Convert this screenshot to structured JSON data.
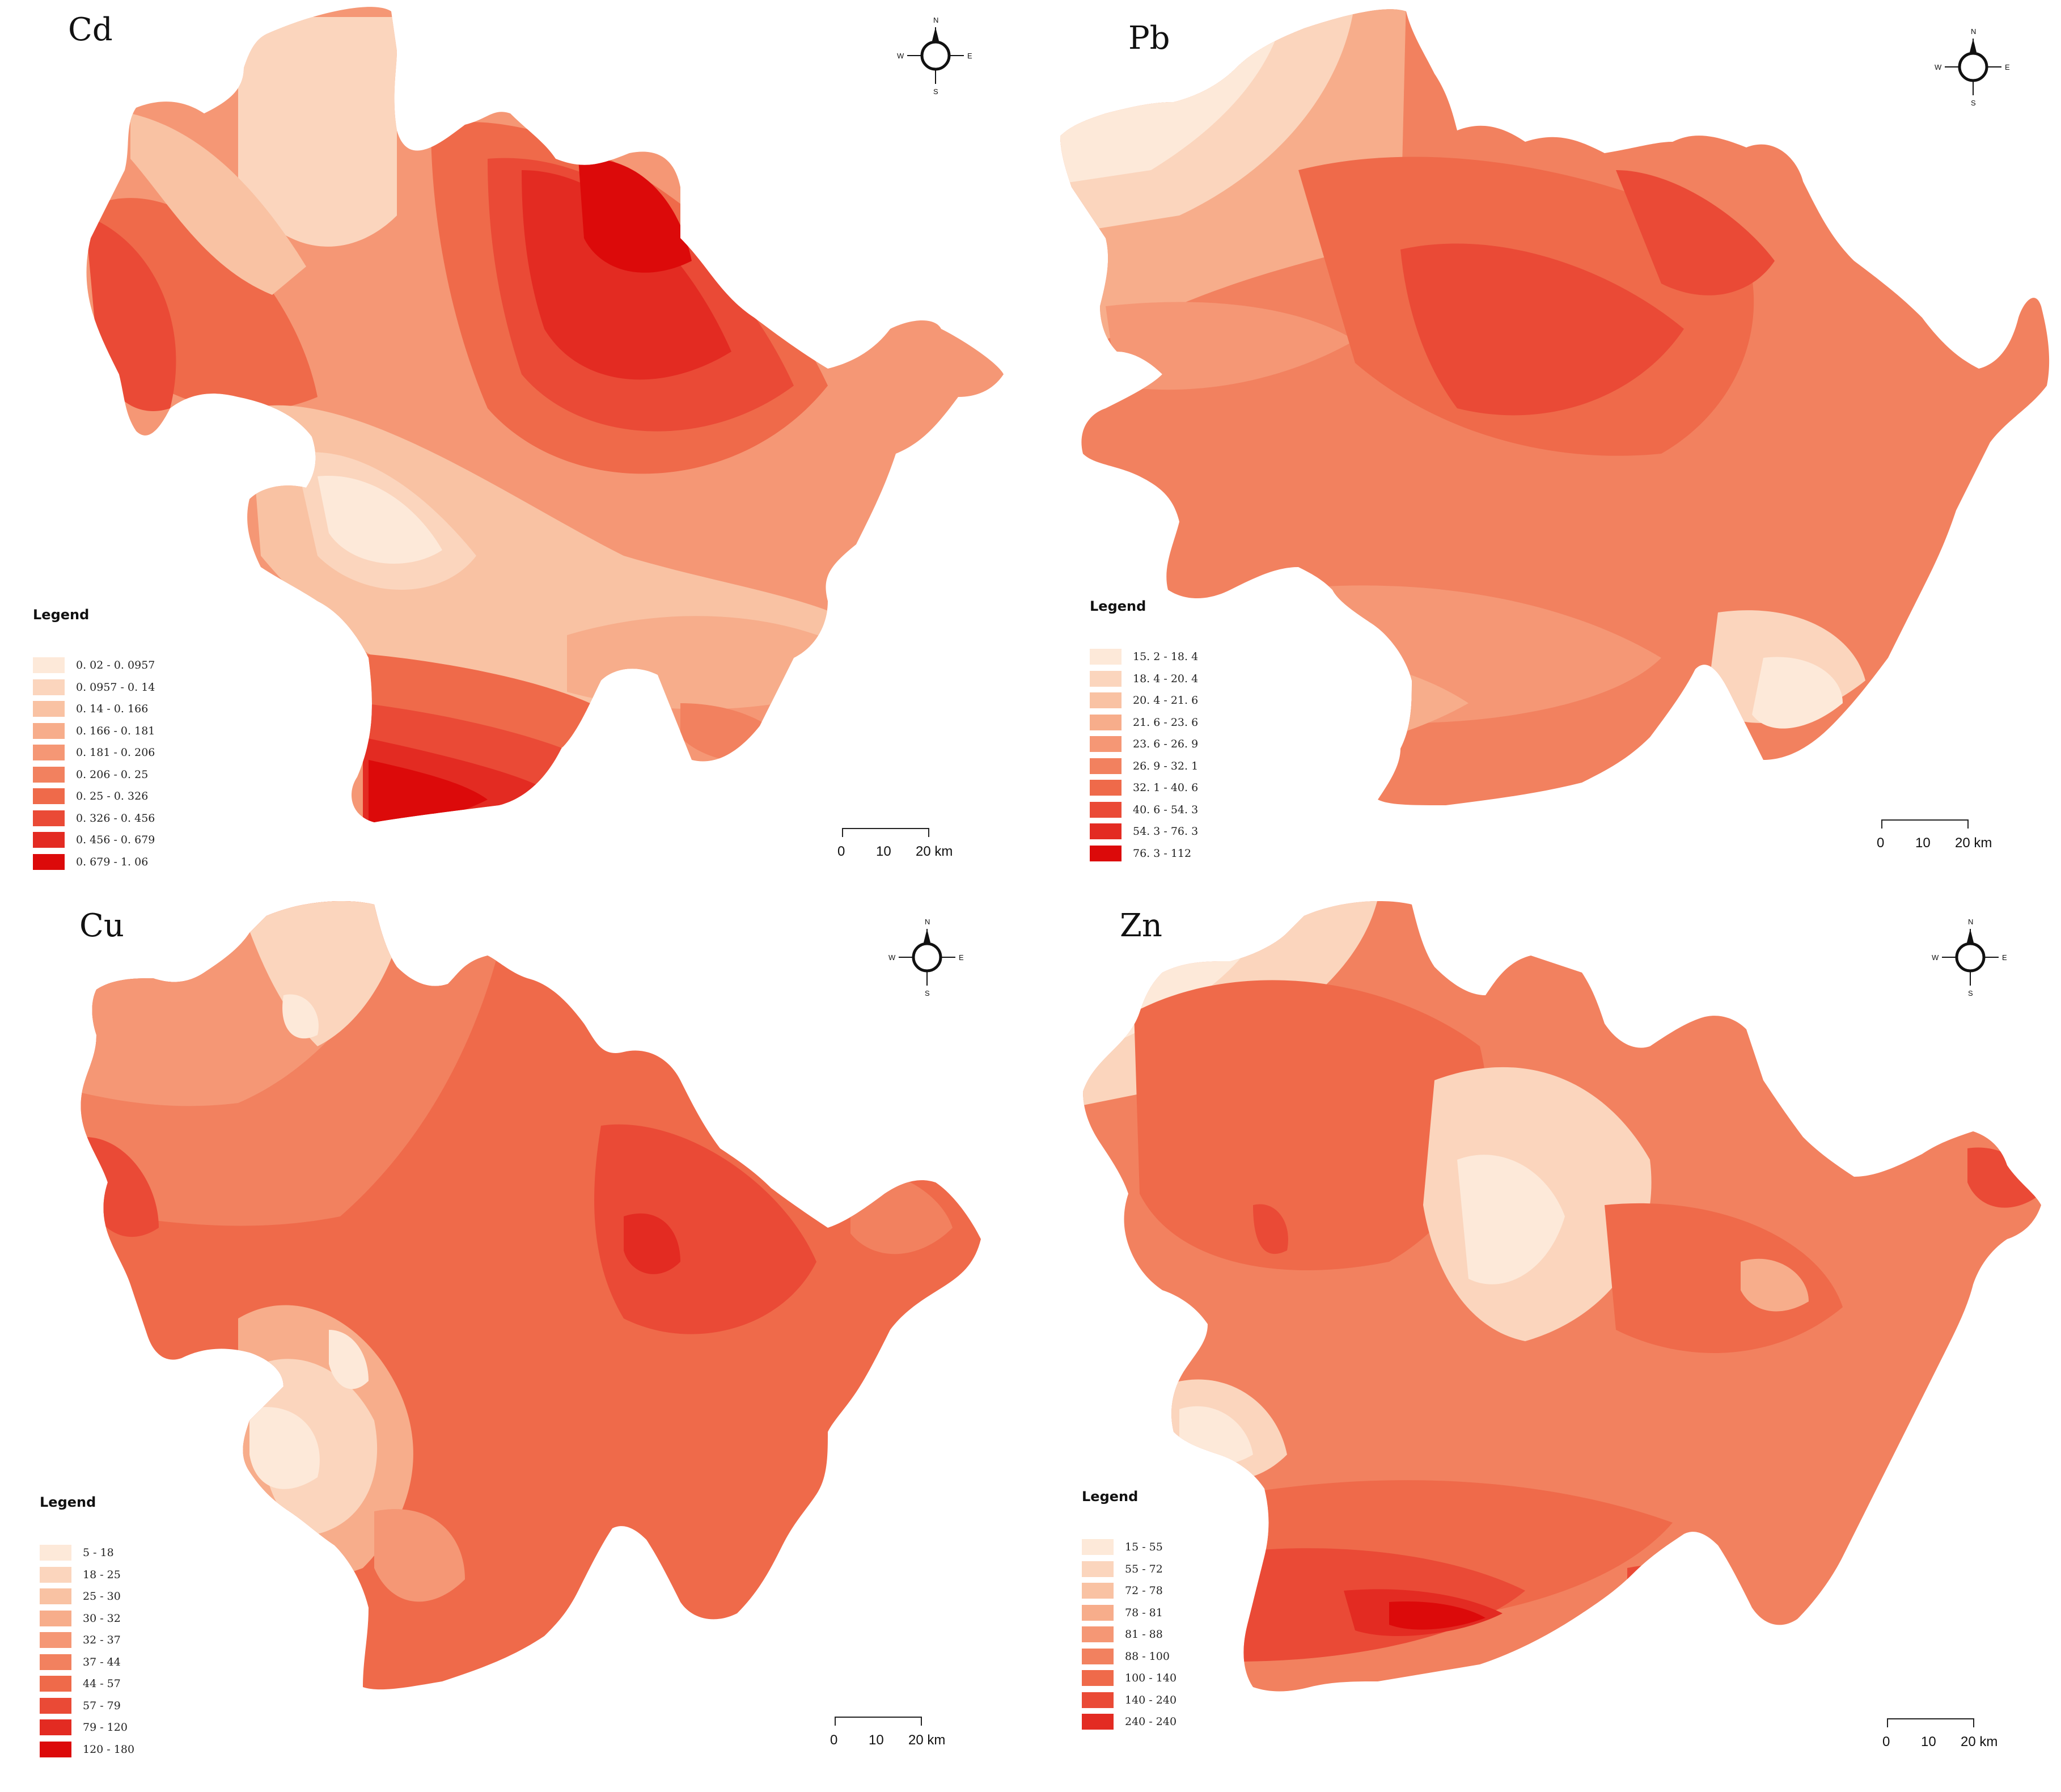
{
  "panels": [
    {
      "title": "Cd",
      "legend_title": "Legend",
      "legend": [
        {
          "label": "0. 02 - 0. 0957",
          "color": "#fde9d9"
        },
        {
          "label": "0. 0957 - 0. 14",
          "color": "#fbd5bd"
        },
        {
          "label": "0. 14 - 0. 166",
          "color": "#f9c2a3"
        },
        {
          "label": "0. 166 - 0. 181",
          "color": "#f7ad8b"
        },
        {
          "label": "0. 181 - 0. 206",
          "color": "#f59775"
        },
        {
          "label": "0. 206 - 0. 25",
          "color": "#f2815f"
        },
        {
          "label": "0. 25 - 0. 326",
          "color": "#ef6a4a"
        },
        {
          "label": "0. 326 - 0. 456",
          "color": "#ea4a36"
        },
        {
          "label": "0. 456 - 0. 679",
          "color": "#e32b22"
        },
        {
          "label": "0. 679 - 1. 06",
          "color": "#dc0a0a"
        }
      ],
      "scale": {
        "ticks": [
          "0",
          "10",
          "20 km"
        ]
      },
      "compass": {
        "n": "N",
        "s": "S",
        "e": "E",
        "w": "W"
      }
    },
    {
      "title": "Pb",
      "legend_title": "Legend",
      "legend": [
        {
          "label": "15. 2 - 18. 4",
          "color": "#fde9d9"
        },
        {
          "label": "18. 4 - 20. 4",
          "color": "#fbd5bd"
        },
        {
          "label": "20. 4 - 21. 6",
          "color": "#f9c2a3"
        },
        {
          "label": "21. 6 - 23. 6",
          "color": "#f7ad8b"
        },
        {
          "label": "23. 6 - 26. 9",
          "color": "#f59775"
        },
        {
          "label": "26. 9 - 32. 1",
          "color": "#f2815f"
        },
        {
          "label": "32. 1 - 40. 6",
          "color": "#ef6a4a"
        },
        {
          "label": "40. 6 - 54. 3",
          "color": "#ea4a36"
        },
        {
          "label": "54. 3 - 76. 3",
          "color": "#e32b22"
        },
        {
          "label": "76. 3 - 112",
          "color": "#dc0a0a"
        }
      ],
      "scale": {
        "ticks": [
          "0",
          "10",
          "20 km"
        ]
      },
      "compass": {
        "n": "N",
        "s": "S",
        "e": "E",
        "w": "W"
      }
    },
    {
      "title": "Cu",
      "legend_title": "Legend",
      "legend": [
        {
          "label": "5 - 18",
          "color": "#fde9d9"
        },
        {
          "label": "18 - 25",
          "color": "#fbd5bd"
        },
        {
          "label": "25 - 30",
          "color": "#f9c2a3"
        },
        {
          "label": "30 - 32",
          "color": "#f7ad8b"
        },
        {
          "label": "32 - 37",
          "color": "#f59775"
        },
        {
          "label": "37 - 44",
          "color": "#f2815f"
        },
        {
          "label": "44 - 57",
          "color": "#ef6a4a"
        },
        {
          "label": "57 - 79",
          "color": "#ea4a36"
        },
        {
          "label": "79 - 120",
          "color": "#e32b22"
        },
        {
          "label": "120 - 180",
          "color": "#dc0a0a"
        }
      ],
      "scale": {
        "ticks": [
          "0",
          "10",
          "20 km"
        ]
      },
      "compass": {
        "n": "N",
        "s": "S",
        "e": "E",
        "w": "W"
      }
    },
    {
      "title": "Zn",
      "legend_title": "Legend",
      "legend": [
        {
          "label": "15 - 55",
          "color": "#fde9d9"
        },
        {
          "label": "55 - 72",
          "color": "#fbd5bd"
        },
        {
          "label": "72 - 78",
          "color": "#f9c2a3"
        },
        {
          "label": "78 - 81",
          "color": "#f7ad8b"
        },
        {
          "label": "81 - 88",
          "color": "#f59775"
        },
        {
          "label": "88 - 100",
          "color": "#f2815f"
        },
        {
          "label": "100 - 140",
          "color": "#ef6a4a"
        },
        {
          "label": "140 - 240",
          "color": "#ea4a36"
        },
        {
          "label": "240 - 240",
          "color": "#e32b22"
        }
      ],
      "scale": {
        "ticks": [
          "0",
          "10",
          "20 km"
        ]
      },
      "compass": {
        "n": "N",
        "s": "S",
        "e": "E",
        "w": "W"
      }
    }
  ]
}
